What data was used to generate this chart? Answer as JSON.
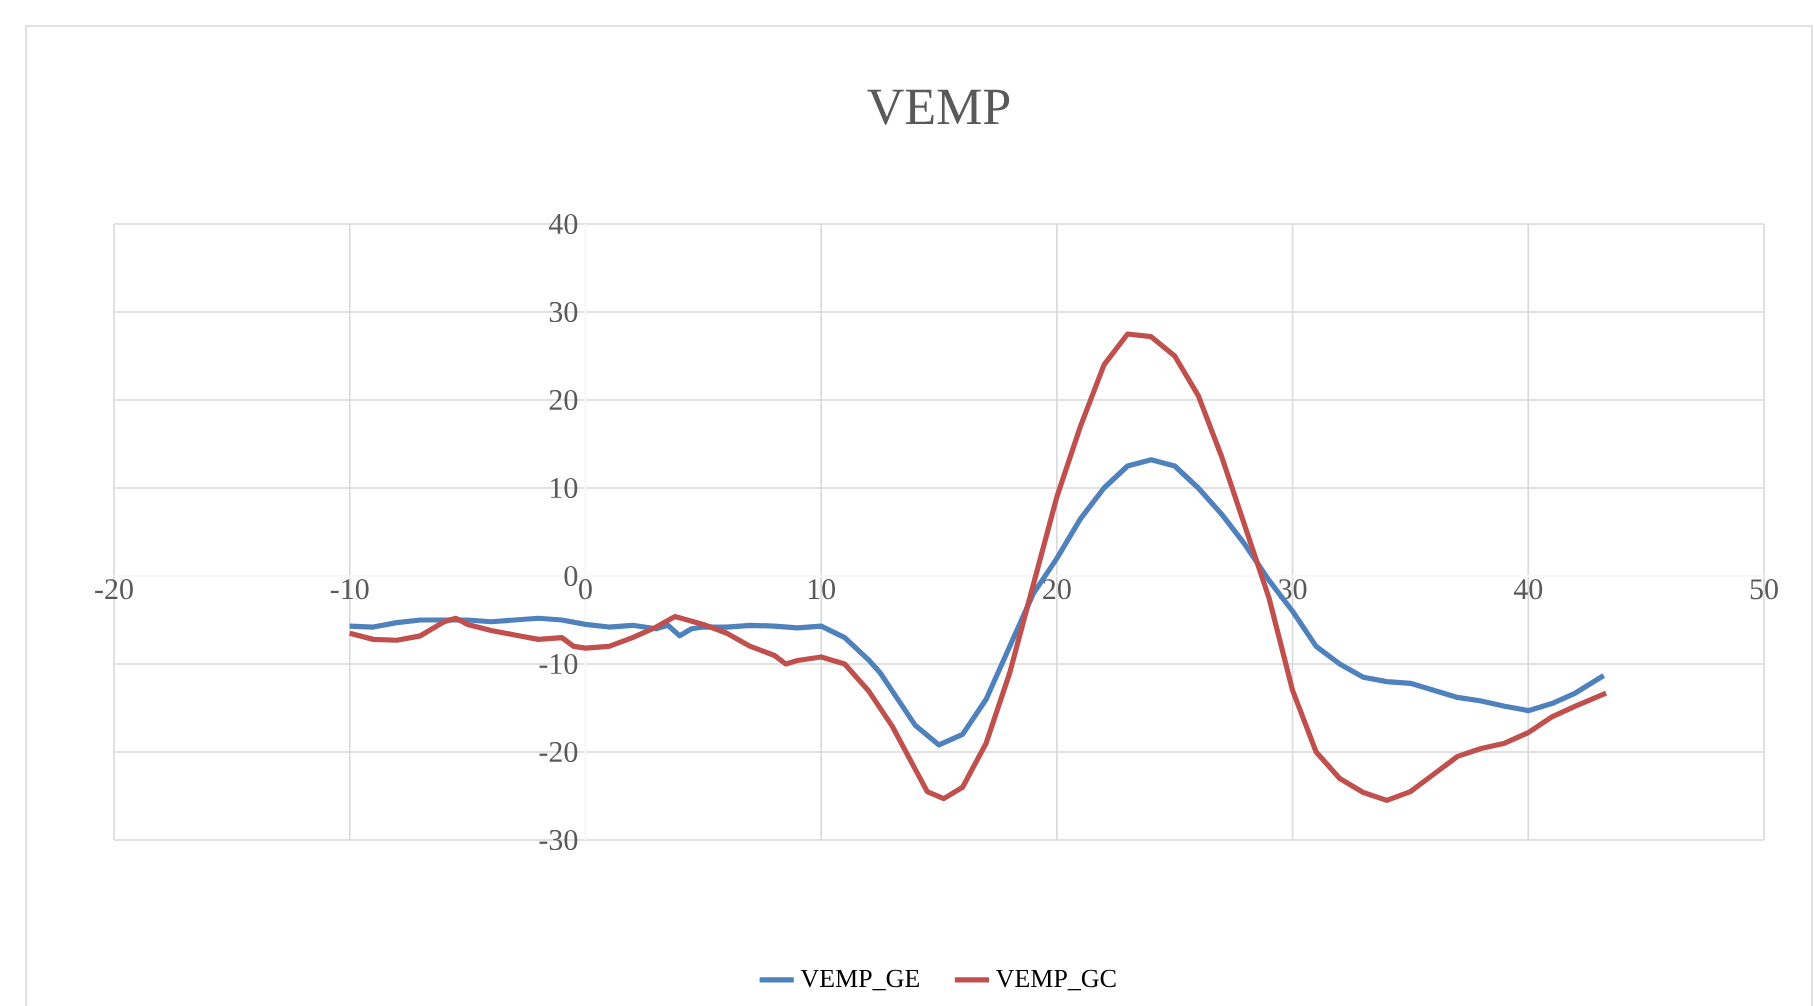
{
  "chart_data": {
    "type": "line",
    "title": "VEMP",
    "xlim": [
      -20,
      50
    ],
    "xticks": [
      -20,
      -10,
      0,
      10,
      20,
      30,
      40,
      50
    ],
    "ylim": [
      -30,
      40
    ],
    "yticks": [
      -30,
      -20,
      -10,
      0,
      10,
      20,
      30,
      40
    ],
    "grid": true,
    "legend": "bottom",
    "marker": "none",
    "line_style": "solid",
    "series": [
      {
        "name": "VEMP_GE",
        "color": "#4f81bd",
        "x": [
          -10,
          -9,
          -8,
          -7,
          -6,
          -5,
          -4,
          -3,
          -2,
          -1,
          0,
          1,
          2,
          3,
          3.5,
          4,
          4.5,
          5,
          6,
          7,
          8,
          9,
          10,
          11,
          12,
          12.5,
          13,
          14,
          15,
          16,
          17,
          18,
          19,
          20,
          21,
          22,
          23,
          24,
          25,
          26,
          27,
          28,
          29,
          30,
          31,
          32,
          33,
          34,
          35,
          36,
          37,
          38,
          39,
          40,
          41,
          42,
          43.2
        ],
        "values": [
          -5.7,
          -5.8,
          -5.3,
          -5,
          -5,
          -5,
          -5.2,
          -5,
          -4.8,
          -5,
          -5.5,
          -5.8,
          -5.6,
          -6,
          -5.6,
          -6.8,
          -6,
          -5.8,
          -5.8,
          -5.6,
          -5.7,
          -5.9,
          -5.7,
          -7,
          -9.5,
          -11,
          -13,
          -17,
          -19.2,
          -18,
          -14,
          -8,
          -2,
          2,
          6.5,
          10,
          12.5,
          13.2,
          12.5,
          10,
          7,
          3.5,
          -0.5,
          -4,
          -8,
          -10,
          -11.5,
          -12,
          -12.2,
          -13,
          -13.8,
          -14.2,
          -14.8,
          -15.3,
          -14.5,
          -13.3,
          -11.3
        ]
      },
      {
        "name": "VEMP_GC",
        "color": "#c0504d",
        "x": [
          -10,
          -9,
          -8,
          -7,
          -6,
          -5.5,
          -5,
          -4,
          -3,
          -2,
          -1,
          -0.5,
          0,
          1,
          2,
          3,
          3.8,
          5,
          6,
          7,
          8,
          8.5,
          9,
          10,
          11,
          12,
          13,
          14,
          14.5,
          15.2,
          16,
          17,
          18,
          19,
          20,
          21,
          22,
          23,
          24,
          25,
          26,
          27,
          28,
          29,
          30,
          31,
          32,
          33,
          34,
          35,
          36,
          37,
          38,
          39,
          40,
          41,
          42,
          43.3
        ],
        "values": [
          -6.5,
          -7.2,
          -7.3,
          -6.8,
          -5.2,
          -4.8,
          -5.5,
          -6.2,
          -6.7,
          -7.2,
          -7,
          -8,
          -8.2,
          -8,
          -7,
          -5.8,
          -4.6,
          -5.5,
          -6.5,
          -8,
          -9,
          -10,
          -9.6,
          -9.2,
          -10,
          -13,
          -17,
          -22,
          -24.5,
          -25.3,
          -24,
          -19,
          -11,
          -1,
          9,
          17,
          24,
          27.5,
          27.2,
          25,
          20.5,
          13.5,
          5.5,
          -2.5,
          -13,
          -20,
          -23,
          -24.6,
          -25.5,
          -24.5,
          -22.5,
          -20.5,
          -19.6,
          -19,
          -17.8,
          -16,
          -14.8,
          -13.3
        ]
      }
    ]
  }
}
